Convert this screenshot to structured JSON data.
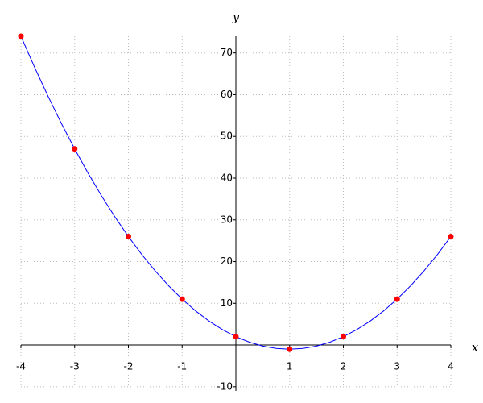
{
  "chart_data": {
    "type": "line",
    "x_label": "x",
    "y_label": "y",
    "xlim": [
      -4,
      4
    ],
    "ylim": [
      -11,
      74
    ],
    "xticks": [
      -4,
      -3,
      -2,
      -1,
      1,
      2,
      3,
      4
    ],
    "yticks": [
      -10,
      10,
      20,
      30,
      40,
      50,
      60,
      70
    ],
    "grid": true,
    "series": [
      {
        "type": "line",
        "color": "#0000ff",
        "x": [
          -4,
          -3.75,
          -3.5,
          -3.25,
          -3,
          -2.75,
          -2.5,
          -2.25,
          -2,
          -1.75,
          -1.5,
          -1.25,
          -1,
          -0.75,
          -0.5,
          -0.25,
          0,
          0.25,
          0.5,
          0.75,
          1,
          1.25,
          1.5,
          1.75,
          2,
          2.25,
          2.5,
          2.75,
          3,
          3.25,
          3.5,
          3.75,
          4
        ],
        "values": [
          74,
          66.6875,
          59.75,
          53.1875,
          47,
          41.1875,
          35.75,
          30.6875,
          26,
          21.6875,
          17.75,
          14.1875,
          11,
          8.1875,
          5.75,
          3.6875,
          2,
          0.6875,
          -0.25,
          -0.8125,
          -1,
          -0.8125,
          -0.25,
          0.6875,
          2,
          3.6875,
          5.75,
          8.1875,
          11,
          14.1875,
          17.75,
          21.6875,
          26
        ]
      },
      {
        "type": "scatter",
        "color": "#ff0000",
        "x": [
          -4,
          -3,
          -2,
          -1,
          0,
          1,
          2,
          3,
          4
        ],
        "values": [
          74,
          47,
          26,
          11,
          2,
          -1,
          2,
          11,
          26
        ]
      }
    ]
  }
}
